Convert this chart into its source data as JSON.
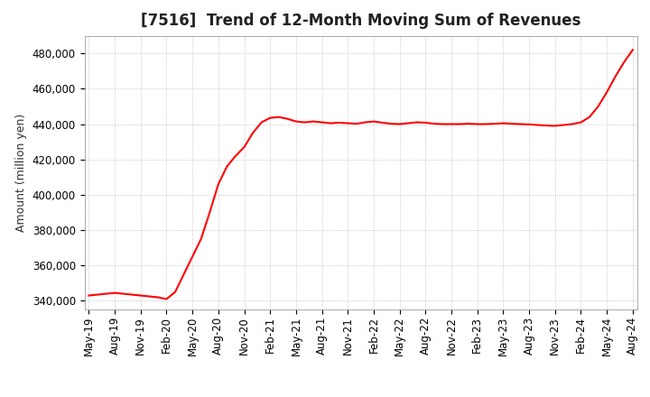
{
  "title": "[7516]  Trend of 12-Month Moving Sum of Revenues",
  "ylabel": "Amount (million yen)",
  "line_color": "#ff0000",
  "background_color": "#ffffff",
  "plot_bg_color": "#ffffff",
  "grid_color": "#aaaaaa",
  "title_fontsize": 12,
  "axis_fontsize": 9,
  "tick_fontsize": 8.5,
  "ylim_min": 335000,
  "ylim_max": 490000,
  "values": [
    343000,
    343500,
    344000,
    344500,
    344000,
    343500,
    343000,
    342500,
    342000,
    341000,
    345000,
    355000,
    365000,
    375000,
    390000,
    406000,
    416000,
    422000,
    427000,
    435000,
    441000,
    443500,
    444000,
    443000,
    441500,
    441000,
    441500,
    441000,
    440500,
    440800,
    440500,
    440200,
    441000,
    441500,
    440800,
    440200,
    440000,
    440500,
    441000,
    440800,
    440200,
    440000,
    440000,
    440000,
    440200,
    440000,
    440000,
    440200,
    440500,
    440200,
    440000,
    439800,
    439500,
    439200,
    439000,
    439500,
    440000,
    441000,
    444000,
    450000,
    458000,
    467000,
    475000,
    482000
  ],
  "xtick_labels": [
    "May-19",
    "Aug-19",
    "Nov-19",
    "Feb-20",
    "May-20",
    "Aug-20",
    "Nov-20",
    "Feb-21",
    "May-21",
    "Aug-21",
    "Nov-21",
    "Feb-22",
    "May-22",
    "Aug-22",
    "Nov-22",
    "Feb-23",
    "May-23",
    "Aug-23",
    "Nov-23",
    "Feb-24",
    "May-24",
    "Aug-24"
  ],
  "ytick_values": [
    340000,
    360000,
    380000,
    400000,
    420000,
    440000,
    460000,
    480000
  ]
}
